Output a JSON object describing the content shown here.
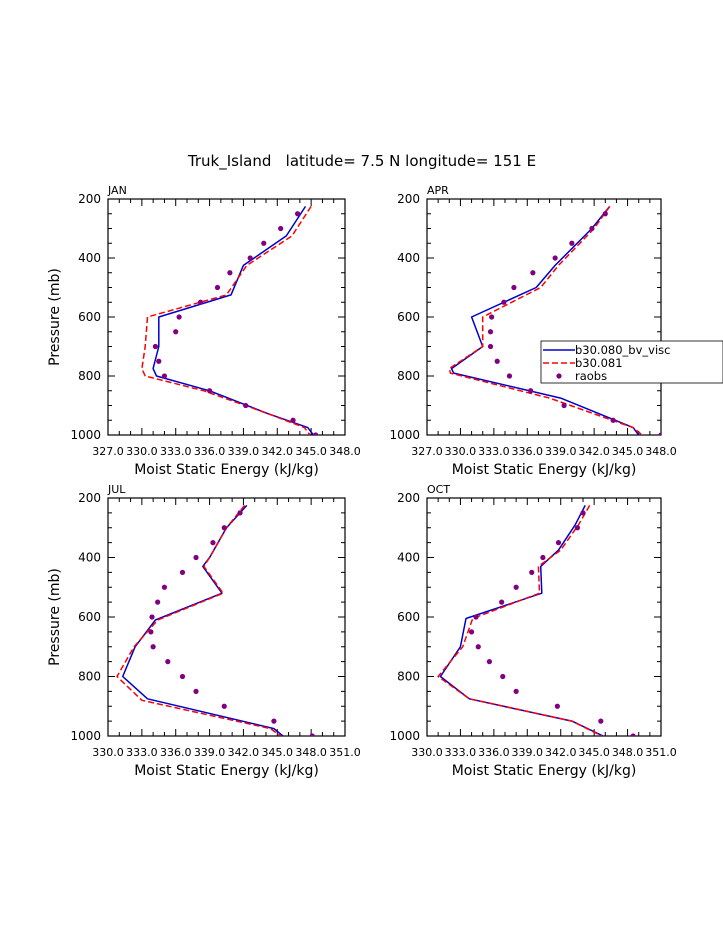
{
  "figure": {
    "title": "Truk_Island   latitude= 7.5 N longitude= 151 E"
  },
  "legend": {
    "entries": [
      {
        "label": "b30.080_bv_visc",
        "style": "solid",
        "color": "#0000cc"
      },
      {
        "label": "b30.081",
        "style": "dashed",
        "color": "#ff0000"
      },
      {
        "label": "raobs",
        "style": "dots",
        "color": "#800080"
      }
    ]
  },
  "colors": {
    "model_a": "#0000cc",
    "model_b": "#ff0000",
    "obs": "#800080"
  },
  "chart_data": [
    {
      "type": "line",
      "title": "JAN",
      "xlabel": "Moist Static Energy (kJ/kg)",
      "ylabel": "Pressure (mb)",
      "xlim": [
        327,
        348
      ],
      "ylim": [
        1000,
        200
      ],
      "x_ticks": [
        327,
        330,
        333,
        336,
        339,
        342,
        345,
        348
      ],
      "x_tick_labels": [
        "327.0",
        "330.0",
        "333.0",
        "336.0",
        "339.0",
        "342.0",
        "345.0",
        "348.0"
      ],
      "y_ticks": [
        200,
        400,
        600,
        800,
        1000
      ],
      "y_tick_labels": [
        "200",
        "400",
        "600",
        "800",
        "1000"
      ],
      "series": [
        {
          "name": "b30.080_bv_visc",
          "pressure": [
            225,
            325,
            425,
            525,
            600,
            700,
            775,
            800,
            850,
            925,
            975,
            1000
          ],
          "values": [
            344.5,
            342.8,
            339.0,
            337.9,
            331.5,
            331.5,
            331.0,
            331.3,
            336.0,
            341.0,
            344.7,
            345.2
          ]
        },
        {
          "name": "b30.081",
          "pressure": [
            225,
            325,
            425,
            525,
            600,
            700,
            775,
            800,
            850,
            925,
            975,
            1000
          ],
          "values": [
            345.0,
            343.3,
            339.3,
            337.5,
            330.5,
            330.3,
            330.0,
            330.3,
            335.5,
            341.0,
            344.4,
            344.9
          ]
        },
        {
          "name": "raobs",
          "pressure": [
            250,
            300,
            350,
            400,
            450,
            500,
            550,
            600,
            650,
            700,
            750,
            800,
            850,
            900,
            950,
            1000
          ],
          "values": [
            343.8,
            342.3,
            340.8,
            339.6,
            337.8,
            336.7,
            335.2,
            333.3,
            333.0,
            331.2,
            331.5,
            332.0,
            336.0,
            339.2,
            343.4,
            345.4
          ]
        }
      ]
    },
    {
      "type": "line",
      "title": "APR",
      "xlabel": "Moist Static Energy (kJ/kg)",
      "ylabel": "",
      "xlim": [
        327,
        348
      ],
      "ylim": [
        1000,
        200
      ],
      "x_ticks": [
        327,
        330,
        333,
        336,
        339,
        342,
        345,
        348
      ],
      "x_tick_labels": [
        "327.0",
        "330.0",
        "333.0",
        "336.0",
        "339.0",
        "342.0",
        "345.0",
        "348.0"
      ],
      "y_ticks": [
        200,
        400,
        600,
        800,
        1000
      ],
      "y_tick_labels": [
        "200",
        "400",
        "600",
        "800",
        "1000"
      ],
      "series": [
        {
          "name": "b30.080_bv_visc",
          "pressure": [
            225,
            300,
            425,
            500,
            600,
            700,
            775,
            790,
            875,
            975,
            1000
          ],
          "values": [
            343.4,
            341.8,
            338.5,
            336.8,
            331.0,
            332.0,
            329.2,
            329.4,
            339.0,
            345.5,
            346.0
          ]
        },
        {
          "name": "b30.081",
          "pressure": [
            225,
            300,
            425,
            500,
            600,
            700,
            775,
            790,
            875,
            975,
            1000
          ],
          "values": [
            343.4,
            342.0,
            338.8,
            337.2,
            332.0,
            332.0,
            329.0,
            329.1,
            338.0,
            345.5,
            346.3
          ]
        },
        {
          "name": "raobs",
          "pressure": [
            250,
            300,
            350,
            400,
            450,
            500,
            550,
            600,
            650,
            700,
            750,
            800,
            850,
            900,
            950,
            1000
          ],
          "values": [
            343.0,
            341.8,
            340.0,
            338.5,
            336.5,
            334.8,
            333.9,
            332.8,
            332.7,
            332.7,
            333.3,
            334.4,
            336.3,
            339.3,
            343.7,
            348.0
          ]
        }
      ]
    },
    {
      "type": "line",
      "title": "JUL",
      "xlabel": "Moist Static Energy (kJ/kg)",
      "ylabel": "Pressure (mb)",
      "xlim": [
        330,
        351
      ],
      "ylim": [
        1000,
        200
      ],
      "x_ticks": [
        330,
        333,
        336,
        339,
        342,
        345,
        348,
        351
      ],
      "x_tick_labels": [
        "330.0",
        "333.0",
        "336.0",
        "339.0",
        "342.0",
        "345.0",
        "348.0",
        "351.0"
      ],
      "y_ticks": [
        200,
        400,
        600,
        800,
        1000
      ],
      "y_tick_labels": [
        "200",
        "400",
        "600",
        "800",
        "1000"
      ],
      "series": [
        {
          "name": "b30.080_bv_visc",
          "pressure": [
            225,
            300,
            400,
            430,
            520,
            610,
            700,
            800,
            875,
            975,
            1000
          ],
          "values": [
            342.3,
            340.5,
            339.0,
            338.4,
            340.1,
            334.2,
            332.4,
            331.3,
            333.5,
            344.7,
            345.5
          ]
        },
        {
          "name": "b30.081",
          "pressure": [
            225,
            300,
            400,
            430,
            520,
            610,
            700,
            800,
            880,
            975,
            1000
          ],
          "values": [
            342.1,
            340.5,
            339.0,
            338.5,
            340.2,
            334.4,
            332.3,
            330.8,
            333.0,
            344.4,
            345.3
          ]
        },
        {
          "name": "raobs",
          "pressure": [
            250,
            300,
            350,
            400,
            450,
            500,
            550,
            600,
            650,
            700,
            750,
            800,
            850,
            900,
            950,
            1000
          ],
          "values": [
            341.7,
            340.3,
            339.3,
            337.8,
            336.6,
            335.0,
            334.4,
            333.9,
            333.8,
            334.0,
            335.3,
            336.6,
            337.8,
            340.3,
            344.7,
            348.1
          ]
        }
      ]
    },
    {
      "type": "line",
      "title": "OCT",
      "xlabel": "Moist Static Energy (kJ/kg)",
      "ylabel": "",
      "xlim": [
        330,
        351
      ],
      "ylim": [
        1000,
        200
      ],
      "x_ticks": [
        330,
        333,
        336,
        339,
        342,
        345,
        348,
        351
      ],
      "x_tick_labels": [
        "330.0",
        "333.0",
        "336.0",
        "339.0",
        "342.0",
        "345.0",
        "348.0",
        "351.0"
      ],
      "y_ticks": [
        200,
        400,
        600,
        800,
        1000
      ],
      "y_tick_labels": [
        "200",
        "400",
        "600",
        "800",
        "1000"
      ],
      "series": [
        {
          "name": "b30.080_bv_visc",
          "pressure": [
            225,
            290,
            375,
            430,
            520,
            605,
            700,
            800,
            875,
            950,
            1000
          ],
          "values": [
            344.2,
            343.3,
            341.8,
            340.2,
            340.3,
            333.5,
            333.0,
            331.2,
            333.8,
            343.0,
            345.8
          ]
        },
        {
          "name": "b30.081",
          "pressure": [
            225,
            290,
            375,
            430,
            520,
            605,
            700,
            800,
            875,
            950,
            1000
          ],
          "values": [
            344.6,
            343.6,
            342.0,
            340.0,
            340.1,
            334.1,
            333.2,
            331.0,
            333.8,
            343.0,
            345.7
          ]
        },
        {
          "name": "raobs",
          "pressure": [
            250,
            300,
            350,
            400,
            450,
            500,
            550,
            600,
            650,
            700,
            750,
            800,
            850,
            900,
            950,
            1000
          ],
          "values": [
            344.0,
            343.5,
            341.8,
            340.4,
            339.4,
            338.0,
            336.7,
            334.4,
            334.0,
            334.6,
            335.6,
            336.8,
            338.0,
            341.7,
            345.6,
            348.5
          ]
        }
      ]
    }
  ]
}
